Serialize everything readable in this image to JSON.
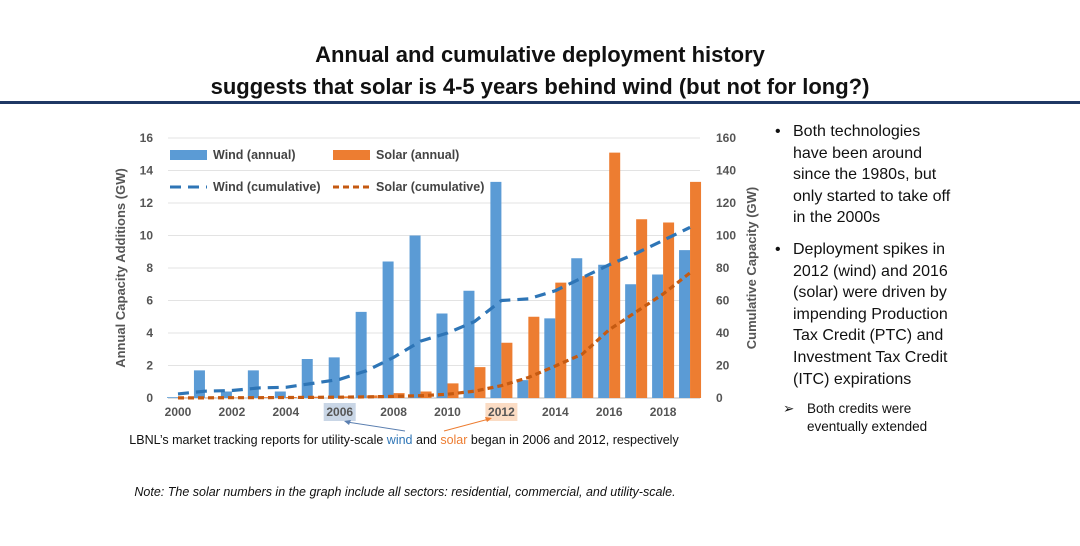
{
  "title": {
    "line1": "Annual and cumulative deployment history",
    "line2": "suggests that solar is 4-5 years behind wind (but not for long?)"
  },
  "chart_data": {
    "type": "bar",
    "ylabel": "Annual Capacity Additions (GW)",
    "y2label": "Cumulative Capacity (GW)",
    "ylim": [
      0,
      16
    ],
    "y2lim": [
      0,
      160
    ],
    "yticks": [
      "0",
      "2",
      "4",
      "6",
      "8",
      "10",
      "12",
      "14",
      "16"
    ],
    "y2ticks": [
      "0",
      "20",
      "40",
      "60",
      "80",
      "100",
      "120",
      "140",
      "160"
    ],
    "xticks": [
      "2000",
      "2002",
      "2004",
      "2006",
      "2008",
      "2010",
      "2012",
      "2014",
      "2016",
      "2018"
    ],
    "highlighted_ticks": {
      "2006": "#c9d6e6",
      "2012": "#fbdcc4"
    },
    "grid": true,
    "legend_position": "top-left",
    "x": [
      2000,
      2001,
      2002,
      2003,
      2004,
      2005,
      2006,
      2007,
      2008,
      2009,
      2010,
      2011,
      2012,
      2013,
      2014,
      2015,
      2016,
      2017,
      2018,
      2019
    ],
    "series": [
      {
        "name": "Wind (annual)",
        "kind": "bar",
        "axis": "left",
        "color": "#5b9bd5",
        "values": [
          0.05,
          1.7,
          0.4,
          1.7,
          0.4,
          2.4,
          2.5,
          5.3,
          8.4,
          10.0,
          5.2,
          6.6,
          13.3,
          1.1,
          4.9,
          8.6,
          8.2,
          7.0,
          7.6,
          9.1
        ]
      },
      {
        "name": "Solar (annual)",
        "kind": "bar",
        "axis": "left",
        "color": "#ed7d31",
        "values": [
          0.02,
          0.02,
          0.03,
          0.05,
          0.06,
          0.08,
          0.1,
          0.16,
          0.3,
          0.4,
          0.9,
          1.9,
          3.4,
          5.0,
          7.1,
          7.5,
          15.1,
          11.0,
          10.8,
          13.3
        ]
      },
      {
        "name": "Wind (cumulative)",
        "kind": "line",
        "axis": "right",
        "color": "#2e75b6",
        "values": [
          2.5,
          4.2,
          4.6,
          6.2,
          6.6,
          9.0,
          11.5,
          16.8,
          25,
          35,
          40,
          47,
          60,
          61,
          66,
          74,
          82,
          89,
          97,
          105
        ]
      },
      {
        "name": "Solar (cumulative)",
        "kind": "line",
        "axis": "right",
        "color": "#c55a11",
        "values": [
          0.1,
          0.1,
          0.2,
          0.2,
          0.3,
          0.4,
          0.5,
          0.7,
          1.0,
          1.4,
          2.3,
          4.2,
          7.6,
          12.6,
          19.7,
          27,
          42,
          53,
          64,
          77
        ]
      }
    ]
  },
  "caption": {
    "prefix": "LBNL’s market tracking reports for utility-scale ",
    "wind": "wind",
    "mid": " and ",
    "solar": "solar",
    "suffix": " began in 2006 and 2012, respectively",
    "wind_color": "#2e75b6",
    "solar_color": "#ed7d31"
  },
  "note": "Note:  The solar numbers in the graph include all sectors: residential, commercial, and utility-scale.",
  "side": {
    "bullets": [
      "Both technologies have been around since the 1980s, but only started to take off in the 2000s",
      "Deployment spikes in 2012 (wind) and 2016 (solar) were driven by impending Production Tax Credit (PTC) and Investment Tax Credit (ITC) expirations"
    ],
    "sub": "Both credits were eventually extended"
  }
}
